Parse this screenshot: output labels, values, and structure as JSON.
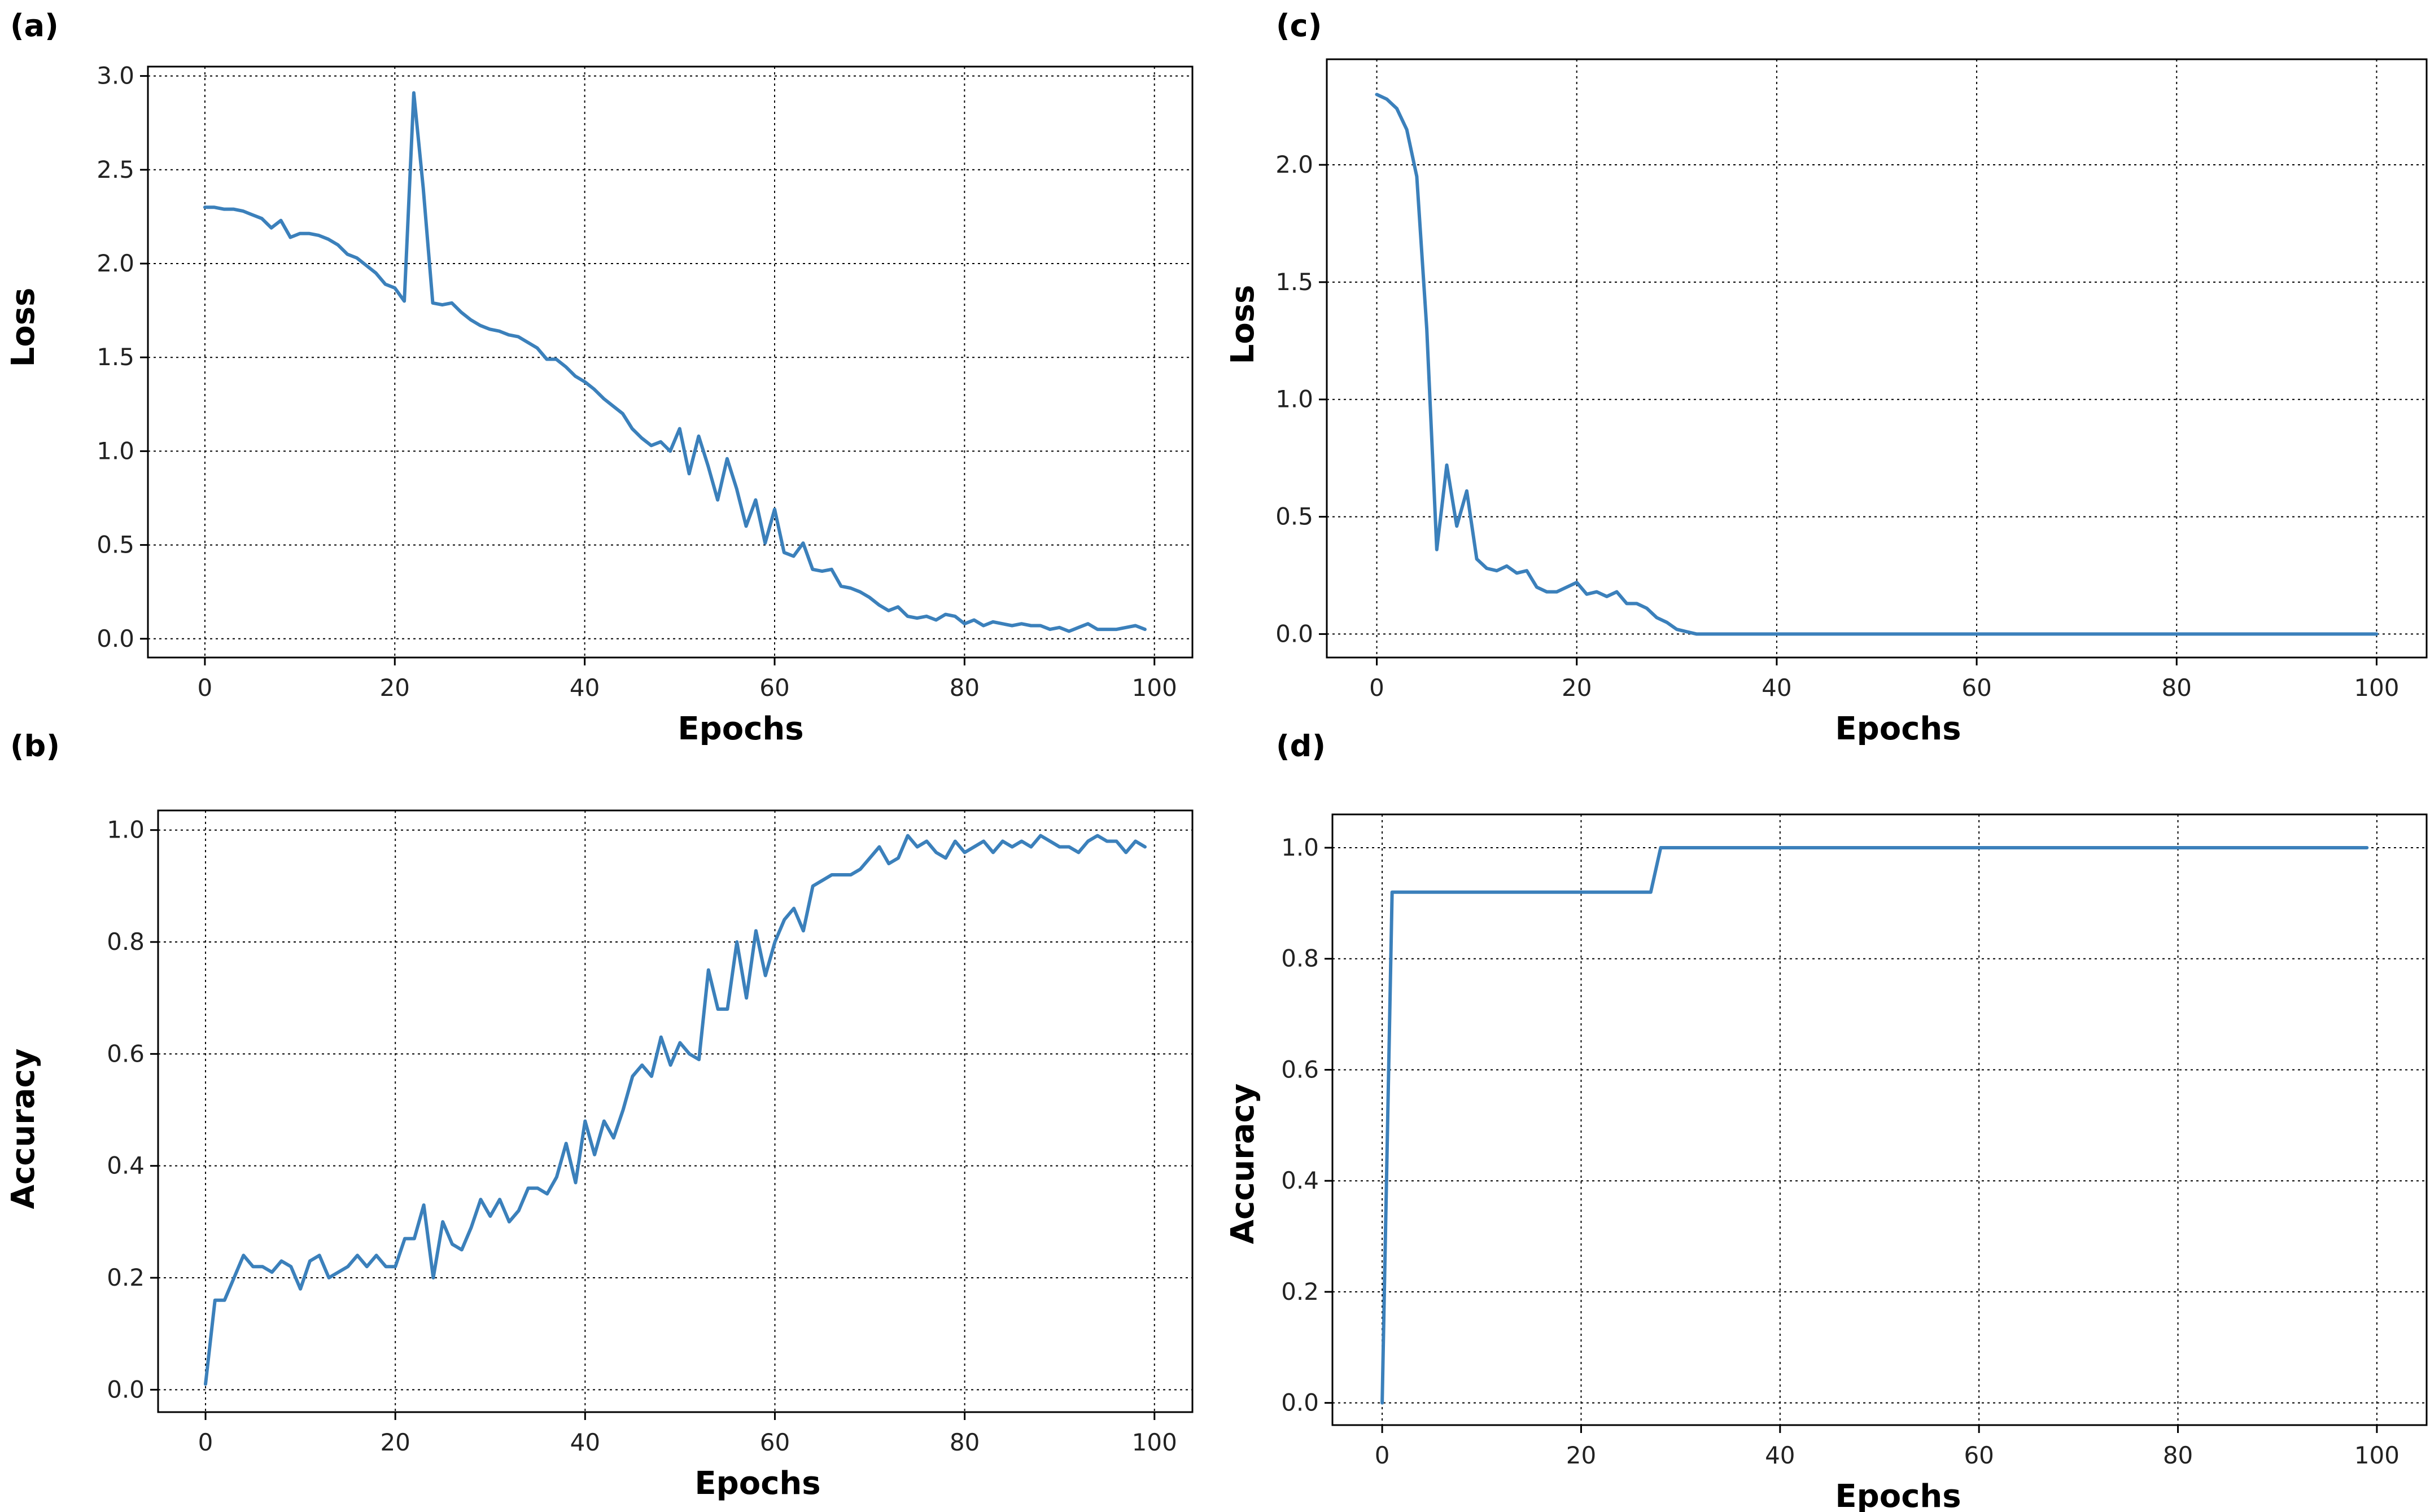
{
  "theme": {
    "line_color": "#3b80bb"
  },
  "chart_data": [
    {
      "id": "a",
      "panel_label": "(a)",
      "type": "line",
      "xlabel": "Epochs",
      "ylabel": "Loss",
      "xlim": [
        -6,
        104
      ],
      "ylim": [
        -0.1,
        3.05
      ],
      "xticks": [
        0,
        20,
        40,
        60,
        80,
        100
      ],
      "yticks": [
        0.0,
        0.5,
        1.0,
        1.5,
        2.0,
        2.5,
        3.0
      ],
      "ytick_labels": [
        "0.0",
        "0.5",
        "1.0",
        "1.5",
        "2.0",
        "2.5",
        "3.0"
      ],
      "grid": true,
      "series": [
        {
          "name": "loss",
          "x": [
            0,
            1,
            2,
            3,
            4,
            5,
            6,
            7,
            8,
            9,
            10,
            11,
            12,
            13,
            14,
            15,
            16,
            17,
            18,
            19,
            20,
            21,
            22,
            23,
            24,
            25,
            26,
            27,
            28,
            29,
            30,
            31,
            32,
            33,
            34,
            35,
            36,
            37,
            38,
            39,
            40,
            41,
            42,
            43,
            44,
            45,
            46,
            47,
            48,
            49,
            50,
            51,
            52,
            53,
            54,
            55,
            56,
            57,
            58,
            59,
            60,
            61,
            62,
            63,
            64,
            65,
            66,
            67,
            68,
            69,
            70,
            71,
            72,
            73,
            74,
            75,
            76,
            77,
            78,
            79,
            80,
            81,
            82,
            83,
            84,
            85,
            86,
            87,
            88,
            89,
            90,
            91,
            92,
            93,
            94,
            95,
            96,
            97,
            98,
            99
          ],
          "values": [
            2.3,
            2.3,
            2.29,
            2.29,
            2.28,
            2.26,
            2.24,
            2.19,
            2.23,
            2.14,
            2.16,
            2.16,
            2.15,
            2.13,
            2.1,
            2.05,
            2.03,
            1.99,
            1.95,
            1.89,
            1.87,
            1.8,
            2.91,
            2.4,
            1.79,
            1.78,
            1.79,
            1.74,
            1.7,
            1.67,
            1.65,
            1.64,
            1.62,
            1.61,
            1.58,
            1.55,
            1.49,
            1.49,
            1.45,
            1.4,
            1.37,
            1.33,
            1.28,
            1.24,
            1.2,
            1.12,
            1.07,
            1.03,
            1.05,
            1.0,
            1.12,
            0.88,
            1.08,
            0.92,
            0.74,
            0.96,
            0.8,
            0.6,
            0.74,
            0.51,
            0.69,
            0.46,
            0.44,
            0.51,
            0.37,
            0.36,
            0.37,
            0.28,
            0.27,
            0.25,
            0.22,
            0.18,
            0.15,
            0.17,
            0.12,
            0.11,
            0.12,
            0.1,
            0.13,
            0.12,
            0.08,
            0.1,
            0.07,
            0.09,
            0.08,
            0.07,
            0.08,
            0.07,
            0.07,
            0.05,
            0.06,
            0.04,
            0.06,
            0.08,
            0.05,
            0.05,
            0.05,
            0.06,
            0.07,
            0.05
          ]
        }
      ]
    },
    {
      "id": "b",
      "panel_label": "(b)",
      "type": "line",
      "xlabel": "Epochs",
      "ylabel": "Accuracy",
      "xlim": [
        -5,
        104
      ],
      "ylim": [
        -0.04,
        1.035
      ],
      "xticks": [
        0,
        20,
        40,
        60,
        80,
        100
      ],
      "yticks": [
        0.0,
        0.2,
        0.4,
        0.6,
        0.8,
        1.0
      ],
      "ytick_labels": [
        "0.0",
        "0.2",
        "0.4",
        "0.6",
        "0.8",
        "1.0"
      ],
      "grid": true,
      "series": [
        {
          "name": "accuracy",
          "x": [
            0,
            1,
            2,
            3,
            4,
            5,
            6,
            7,
            8,
            9,
            10,
            11,
            12,
            13,
            14,
            15,
            16,
            17,
            18,
            19,
            20,
            21,
            22,
            23,
            24,
            25,
            26,
            27,
            28,
            29,
            30,
            31,
            32,
            33,
            34,
            35,
            36,
            37,
            38,
            39,
            40,
            41,
            42,
            43,
            44,
            45,
            46,
            47,
            48,
            49,
            50,
            51,
            52,
            53,
            54,
            55,
            56,
            57,
            58,
            59,
            60,
            61,
            62,
            63,
            64,
            65,
            66,
            67,
            68,
            69,
            70,
            71,
            72,
            73,
            74,
            75,
            76,
            77,
            78,
            79,
            80,
            81,
            82,
            83,
            84,
            85,
            86,
            87,
            88,
            89,
            90,
            91,
            92,
            93,
            94,
            95,
            96,
            97,
            98,
            99
          ],
          "values": [
            0.01,
            0.16,
            0.16,
            0.2,
            0.24,
            0.22,
            0.22,
            0.21,
            0.23,
            0.22,
            0.18,
            0.23,
            0.24,
            0.2,
            0.21,
            0.22,
            0.24,
            0.22,
            0.24,
            0.22,
            0.22,
            0.27,
            0.27,
            0.33,
            0.2,
            0.3,
            0.26,
            0.25,
            0.29,
            0.34,
            0.31,
            0.34,
            0.3,
            0.32,
            0.36,
            0.36,
            0.35,
            0.38,
            0.44,
            0.37,
            0.48,
            0.42,
            0.48,
            0.45,
            0.5,
            0.56,
            0.58,
            0.56,
            0.63,
            0.58,
            0.62,
            0.6,
            0.59,
            0.75,
            0.68,
            0.68,
            0.8,
            0.7,
            0.82,
            0.74,
            0.8,
            0.84,
            0.86,
            0.82,
            0.9,
            0.91,
            0.92,
            0.92,
            0.92,
            0.93,
            0.95,
            0.97,
            0.94,
            0.95,
            0.99,
            0.97,
            0.98,
            0.96,
            0.95,
            0.98,
            0.96,
            0.97,
            0.98,
            0.96,
            0.98,
            0.97,
            0.98,
            0.97,
            0.99,
            0.98,
            0.97,
            0.97,
            0.96,
            0.98,
            0.99,
            0.98,
            0.98,
            0.96,
            0.98,
            0.97
          ]
        }
      ]
    },
    {
      "id": "c",
      "panel_label": "(c)",
      "type": "line",
      "xlabel": "Epochs",
      "ylabel": "Loss",
      "xlim": [
        -5,
        105
      ],
      "ylim": [
        -0.1,
        2.45
      ],
      "xticks": [
        0,
        20,
        40,
        60,
        80,
        100
      ],
      "yticks": [
        0.0,
        0.5,
        1.0,
        1.5,
        2.0
      ],
      "ytick_labels": [
        "0.0",
        "0.5",
        "1.0",
        "1.5",
        "2.0"
      ],
      "grid": true,
      "series": [
        {
          "name": "loss",
          "x": [
            0,
            1,
            2,
            3,
            4,
            5,
            6,
            7,
            8,
            9,
            10,
            11,
            12,
            13,
            14,
            15,
            16,
            17,
            18,
            19,
            20,
            21,
            22,
            23,
            24,
            25,
            26,
            27,
            28,
            29,
            30,
            31,
            32,
            33,
            34,
            35,
            40,
            50,
            60,
            70,
            80,
            90,
            100
          ],
          "values": [
            2.3,
            2.28,
            2.24,
            2.15,
            1.95,
            1.3,
            0.36,
            0.72,
            0.46,
            0.61,
            0.32,
            0.28,
            0.27,
            0.29,
            0.26,
            0.27,
            0.2,
            0.18,
            0.18,
            0.2,
            0.22,
            0.17,
            0.18,
            0.16,
            0.18,
            0.13,
            0.13,
            0.11,
            0.07,
            0.05,
            0.02,
            0.01,
            0.0,
            0.0,
            0.0,
            0.0,
            0.0,
            0.0,
            0.0,
            0.0,
            0.0,
            0.0,
            0.0
          ]
        }
      ]
    },
    {
      "id": "d",
      "panel_label": "(d)",
      "type": "line",
      "xlabel": "Epochs",
      "ylabel": "Accuracy",
      "xlim": [
        -5,
        105
      ],
      "ylim": [
        -0.04,
        1.06
      ],
      "xticks": [
        0,
        20,
        40,
        60,
        80,
        100
      ],
      "yticks": [
        0.0,
        0.2,
        0.4,
        0.6,
        0.8,
        1.0
      ],
      "ytick_labels": [
        "0.0",
        "0.2",
        "0.4",
        "0.6",
        "0.8",
        "1.0"
      ],
      "grid": true,
      "series": [
        {
          "name": "accuracy",
          "x": [
            0,
            1,
            10,
            20,
            27,
            28,
            40,
            60,
            80,
            99
          ],
          "values": [
            0.0,
            0.92,
            0.92,
            0.92,
            0.92,
            1.0,
            1.0,
            1.0,
            1.0,
            1.0
          ]
        }
      ]
    }
  ]
}
